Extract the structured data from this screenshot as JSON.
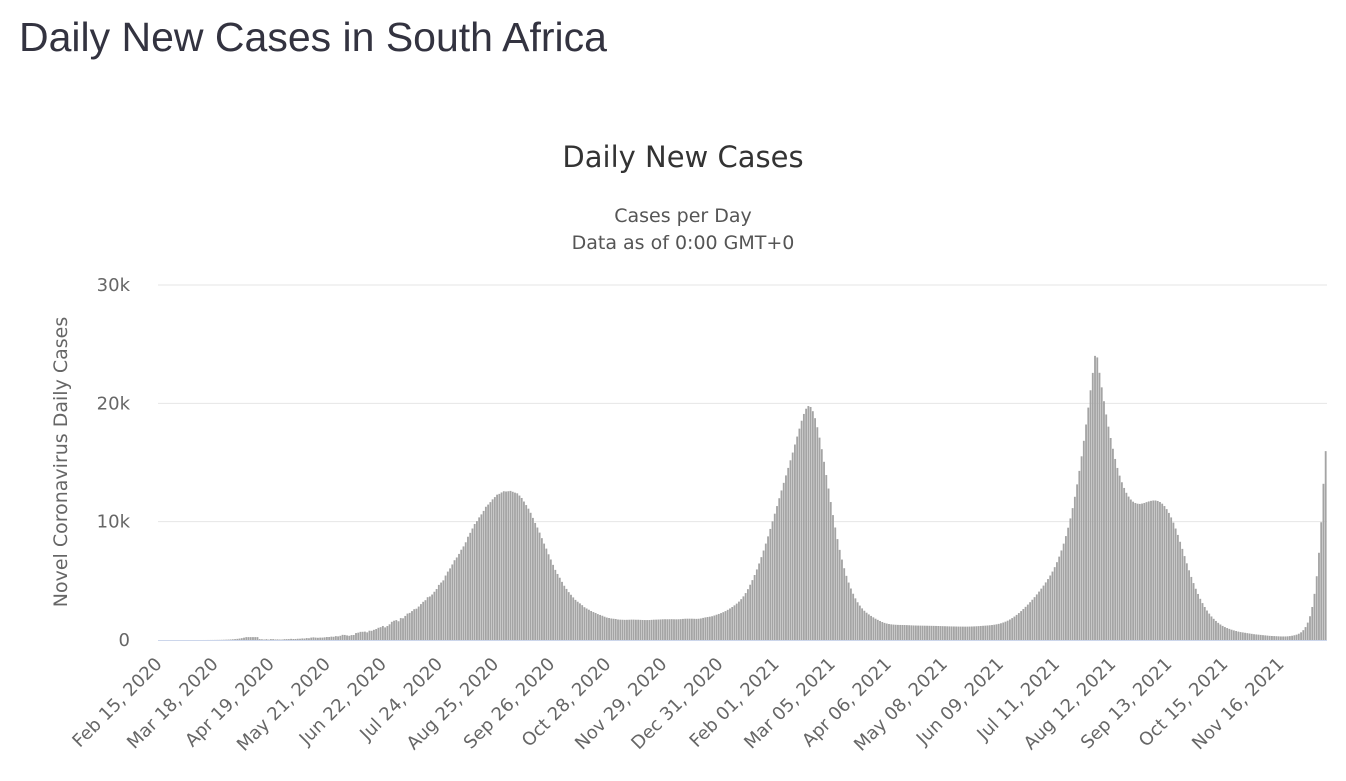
{
  "page": {
    "title": "Daily New Cases in South Africa"
  },
  "chart_data": {
    "type": "bar",
    "title": "Daily New Cases",
    "subtitle_lines": [
      "Cases per Day",
      "Data as of 0:00 GMT+0"
    ],
    "ylabel": "Novel Coronavirus Daily Cases",
    "xlabel": "",
    "x_start": "Feb 15, 2020",
    "x_end": "Dec 08, 2021",
    "ylim": [
      0,
      30000
    ],
    "y_ticks": [
      0,
      10000,
      20000,
      30000
    ],
    "y_tick_labels": [
      "0",
      "10k",
      "20k",
      "30k"
    ],
    "x_tick_labels": [
      "Feb 15, 2020",
      "Mar 18, 2020",
      "Apr 19, 2020",
      "May 21, 2020",
      "Jun 22, 2020",
      "Jul 24, 2020",
      "Aug 25, 2020",
      "Sep 26, 2020",
      "Oct 28, 2020",
      "Nov 29, 2020",
      "Dec 31, 2020",
      "Feb 01, 2021",
      "Mar 05, 2021",
      "Apr 06, 2021",
      "May 08, 2021",
      "Jun 09, 2021",
      "Jul 11, 2021",
      "Aug 12, 2021",
      "Sep 13, 2021",
      "Oct 15, 2021",
      "Nov 16, 2021"
    ],
    "grid": true,
    "legend": "none",
    "bar_color": "#a4a4a4",
    "series": [
      {
        "values": [
          0,
          0,
          0,
          0,
          0,
          0,
          0,
          0,
          0,
          0,
          0,
          0,
          0,
          0,
          0,
          0,
          0,
          0,
          0,
          0,
          1,
          2,
          3,
          4,
          6,
          8,
          10,
          13,
          17,
          22,
          28,
          36,
          46,
          59,
          75,
          96,
          122,
          155,
          196,
          243,
          243,
          243,
          243,
          243,
          243,
          76,
          61,
          42,
          71,
          36,
          75,
          72,
          47,
          53,
          40,
          39,
          69,
          75,
          78,
          97,
          86,
          88,
          104,
          109,
          133,
          125,
          164,
          147,
          202,
          223,
          202,
          188,
          203,
          204,
          225,
          252,
          251,
          284,
          274,
          328,
          306,
          354,
          435,
          428,
          387,
          356,
          414,
          423,
          587,
          621,
          689,
          694,
          708,
          647,
          785,
          778,
          860,
          926,
          1032,
          1085,
          1184,
          1066,
          1180,
          1327,
          1538,
          1631,
          1683,
          1584,
          1851,
          1832,
          2035,
          2233,
          2291,
          2443,
          2604,
          2645,
          2827,
          3034,
          3227,
          3365,
          3618,
          3677,
          3844,
          4077,
          4307,
          4657,
          4854,
          5039,
          5448,
          5781,
          6052,
          6384,
          6743,
          6975,
          7275,
          7629,
          7910,
          8257,
          8727,
          9055,
          9422,
          9804,
          10044,
          10362,
          10617,
          10909,
          11260,
          11445,
          11652,
          11887,
          12078,
          12281,
          12349,
          12469,
          12572,
          12550,
          12571,
          12600,
          12526,
          12452,
          12396,
          12206,
          12001,
          11702,
          11404,
          11099,
          10749,
          10319,
          9892,
          9505,
          9075,
          8606,
          8147,
          7724,
          7243,
          6802,
          6350,
          5926,
          5580,
          5261,
          4913,
          4584,
          4316,
          4045,
          3822,
          3600,
          3390,
          3234,
          3094,
          2945,
          2773,
          2661,
          2558,
          2451,
          2363,
          2284,
          2190,
          2119,
          2050,
          1969,
          1897,
          1858,
          1818,
          1796,
          1776,
          1732,
          1720,
          1711,
          1702,
          1706,
          1712,
          1723,
          1722,
          1712,
          1714,
          1701,
          1691,
          1685,
          1684,
          1688,
          1703,
          1716,
          1721,
          1730,
          1738,
          1749,
          1755,
          1752,
          1755,
          1760,
          1751,
          1748,
          1752,
          1763,
          1782,
          1797,
          1802,
          1802,
          1799,
          1792,
          1786,
          1796,
          1821,
          1868,
          1908,
          1942,
          1971,
          2009,
          2067,
          2137,
          2201,
          2273,
          2352,
          2442,
          2549,
          2665,
          2788,
          2928,
          3075,
          3244,
          3452,
          3687,
          3966,
          4296,
          4671,
          5060,
          5493,
          5964,
          6466,
          7002,
          7562,
          8148,
          8757,
          9388,
          10029,
          10674,
          11318,
          11981,
          12637,
          13280,
          13909,
          14544,
          15185,
          15841,
          16519,
          17192,
          17862,
          18530,
          19104,
          19545,
          19770,
          19693,
          19335,
          18745,
          17980,
          17102,
          16124,
          15058,
          13942,
          12800,
          11659,
          10557,
          9508,
          8526,
          7617,
          6797,
          6066,
          5422,
          4854,
          4350,
          3910,
          3519,
          3189,
          2908,
          2672,
          2472,
          2307,
          2163,
          2034,
          1914,
          1800,
          1702,
          1607,
          1521,
          1446,
          1392,
          1351,
          1321,
          1301,
          1287,
          1278,
          1272,
          1269,
          1264,
          1256,
          1248,
          1238,
          1230,
          1224,
          1219,
          1215,
          1211,
          1208,
          1205,
          1201,
          1197,
          1193,
          1188,
          1183,
          1176,
          1170,
          1164,
          1158,
          1152,
          1148,
          1144,
          1140,
          1137,
          1134,
          1132,
          1131,
          1132,
          1136,
          1142,
          1150,
          1160,
          1172,
          1186,
          1199,
          1213,
          1227,
          1244,
          1265,
          1291,
          1323,
          1364,
          1414,
          1475,
          1548,
          1634,
          1735,
          1849,
          1979,
          2122,
          2276,
          2442,
          2618,
          2803,
          2994,
          3195,
          3404,
          3623,
          3852,
          4091,
          4340,
          4597,
          4866,
          5149,
          5451,
          5783,
          6156,
          6576,
          7045,
          7566,
          8143,
          8782,
          9490,
          10275,
          11145,
          12102,
          13151,
          14292,
          15523,
          16834,
          18212,
          19640,
          21103,
          22573,
          24011,
          23879,
          22580,
          21350,
          20180,
          19060,
          18030,
          17070,
          16160,
          15300,
          14540,
          13890,
          13330,
          12850,
          12440,
          12120,
          11870,
          11690,
          11580,
          11520,
          11500,
          11530,
          11580,
          11650,
          11710,
          11760,
          11790,
          11790,
          11750,
          11660,
          11520,
          11320,
          11060,
          10740,
          10360,
          9920,
          9420,
          8880,
          8300,
          7700,
          7090,
          6480,
          5890,
          5330,
          4810,
          4330,
          3890,
          3480,
          3120,
          2790,
          2490,
          2230,
          1990,
          1790,
          1610,
          1450,
          1310,
          1190,
          1090,
          1010,
          940,
          870,
          810,
          760,
          710,
          670,
          640,
          610,
          580,
          550,
          520,
          490,
          470,
          450,
          430,
          410,
          390,
          370,
          350,
          340,
          330,
          320,
          310,
          300,
          300,
          300,
          310,
          330,
          360,
          400,
          450,
          530,
          650,
          830,
          1090,
          1470,
          2010,
          2790,
          3900,
          5390,
          7370,
          9950,
          13200,
          15960
        ]
      }
    ]
  }
}
